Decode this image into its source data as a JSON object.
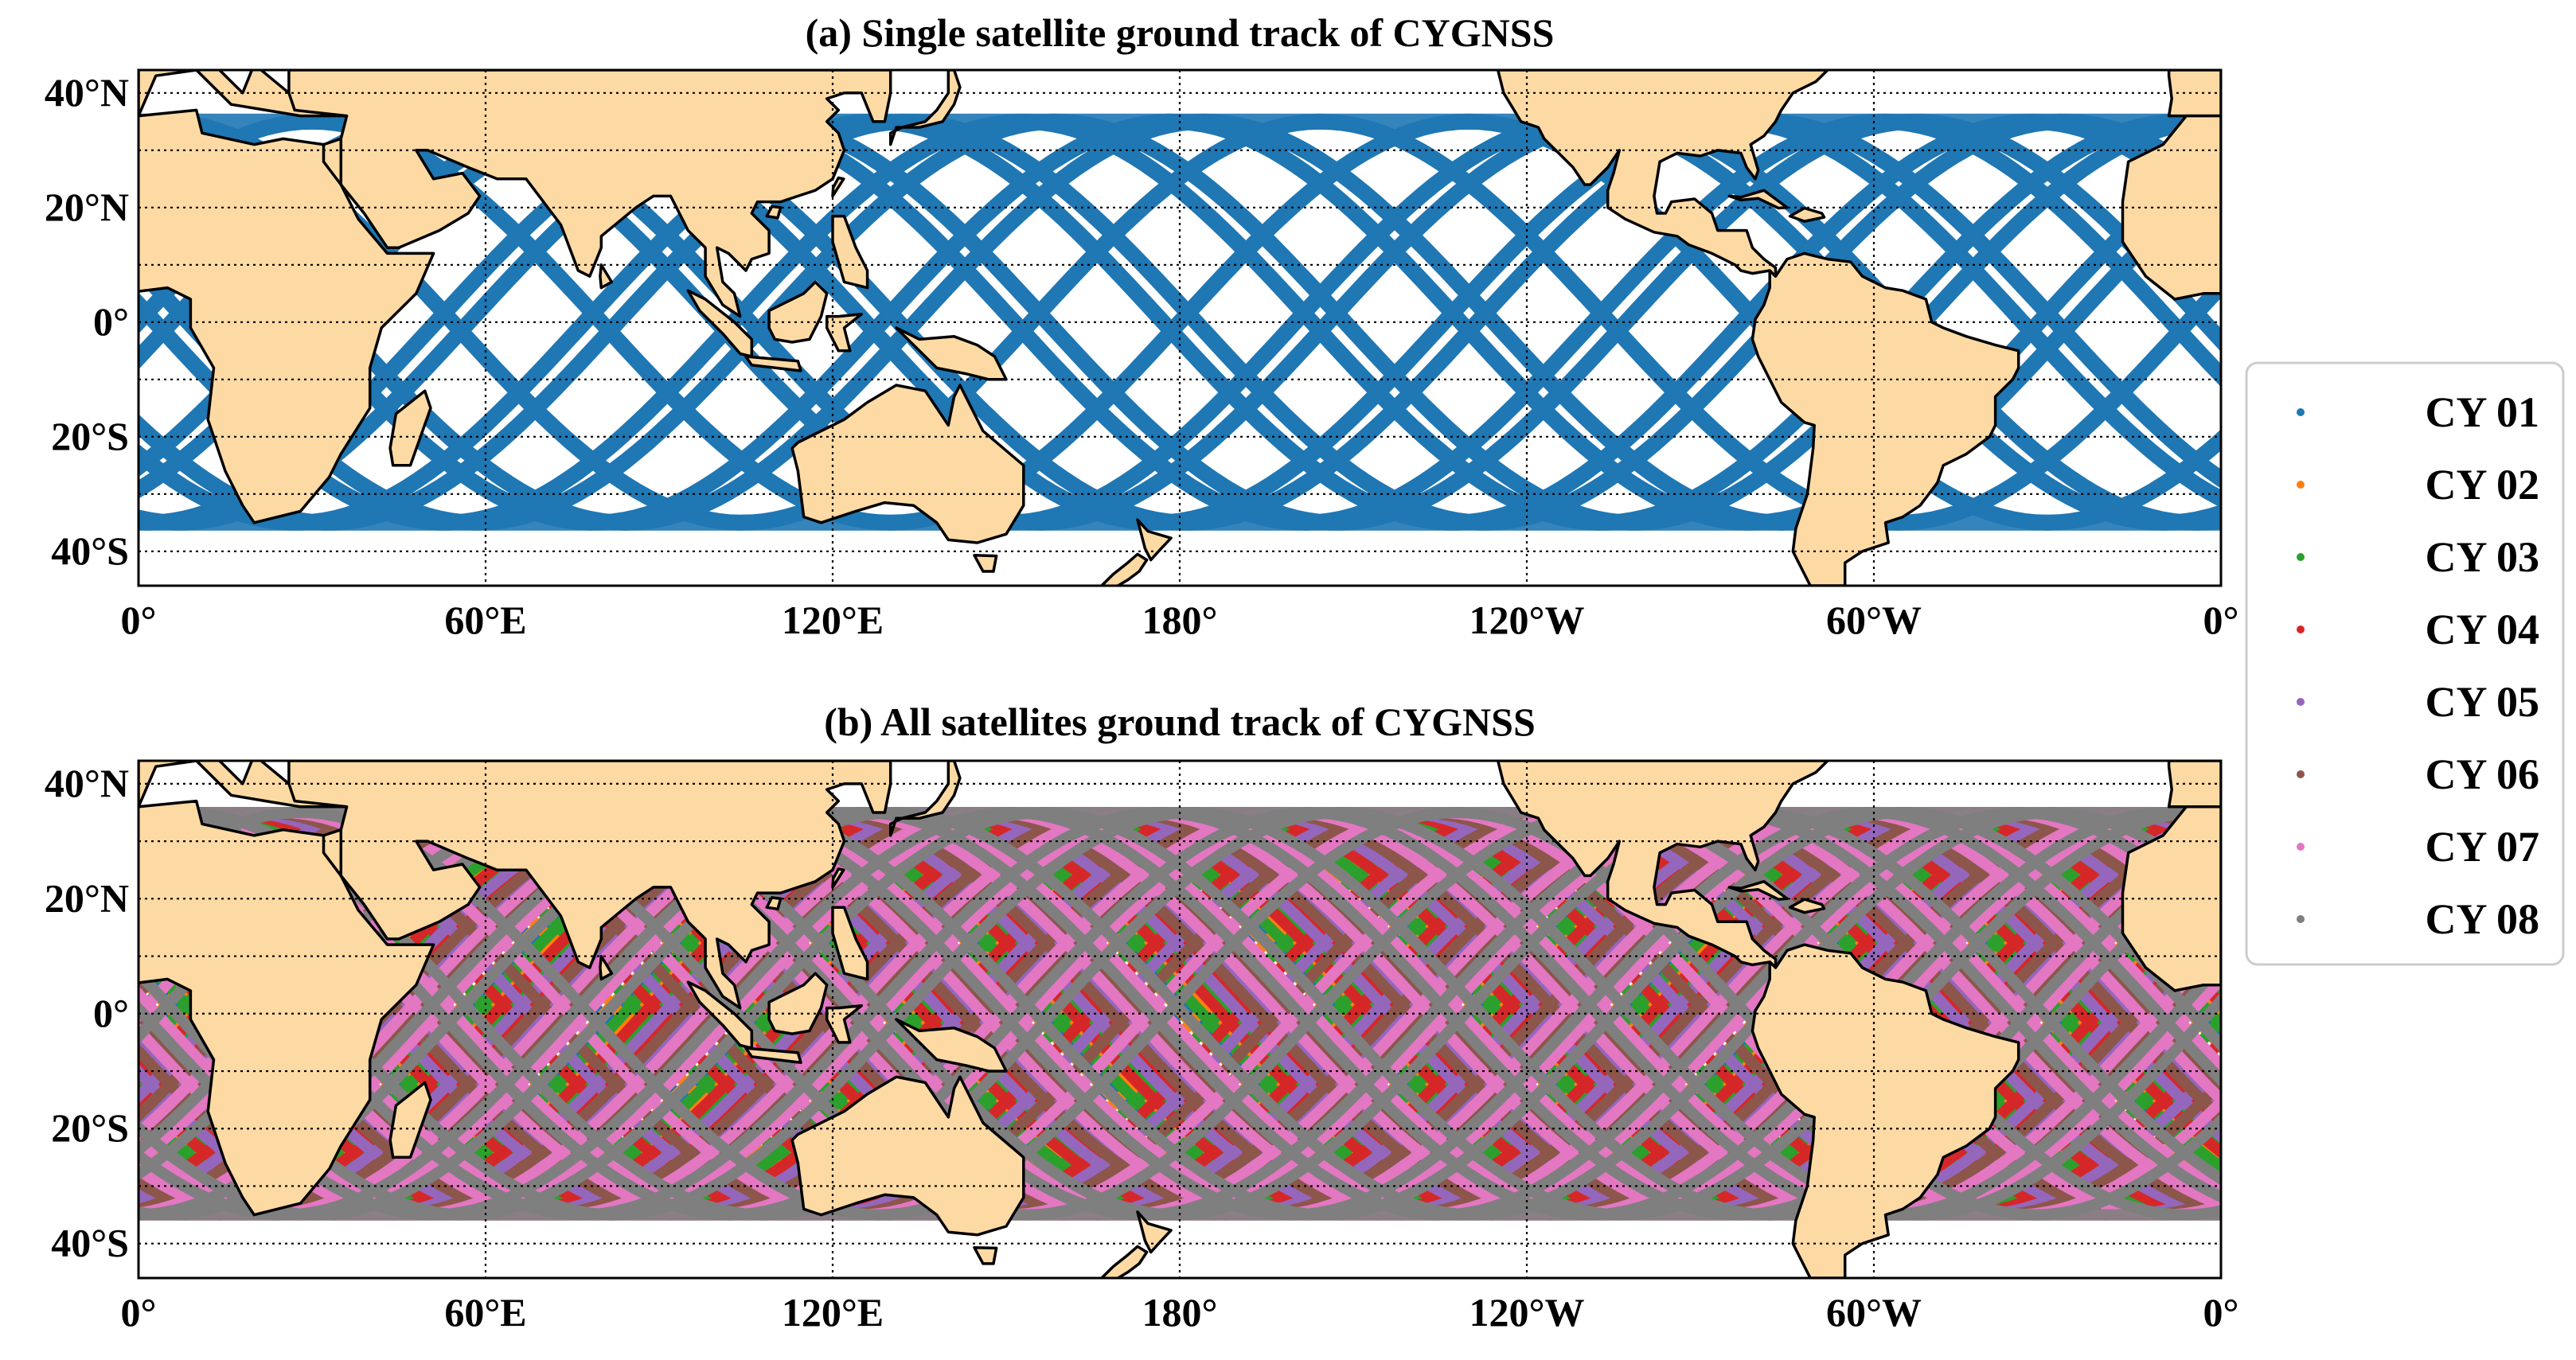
{
  "panels": [
    {
      "id": "a",
      "title": "(a) Single satellite ground track of CYGNSS",
      "satellites": [
        "CY 01"
      ]
    },
    {
      "id": "b",
      "title": "(b) All satellites ground track of CYGNSS",
      "satellites": [
        "CY 01",
        "CY 02",
        "CY 03",
        "CY 04",
        "CY 05",
        "CY 06",
        "CY 07",
        "CY 08"
      ]
    }
  ],
  "x_ticks": [
    {
      "lon": 0,
      "label": "0°"
    },
    {
      "lon": 60,
      "label": "60°E"
    },
    {
      "lon": 120,
      "label": "120°E"
    },
    {
      "lon": 180,
      "label": "180°"
    },
    {
      "lon": 240,
      "label": "120°W"
    },
    {
      "lon": 300,
      "label": "60°W"
    },
    {
      "lon": 360,
      "label": "0°"
    }
  ],
  "y_ticks": [
    {
      "lat": 40,
      "label": "40°N"
    },
    {
      "lat": 20,
      "label": "20°N"
    },
    {
      "lat": 0,
      "label": "0°"
    },
    {
      "lat": -20,
      "label": "20°S"
    },
    {
      "lat": -40,
      "label": "40°S"
    }
  ],
  "lon_range": [
    0,
    360
  ],
  "lat_range": [
    -46,
    44
  ],
  "track_lat_limit": 35,
  "grid": "dotted",
  "legend": {
    "placement": "right-center",
    "entries": [
      {
        "label": "CY 01",
        "color": "#1f77b4"
      },
      {
        "label": "CY 02",
        "color": "#ff7f0e"
      },
      {
        "label": "CY 03",
        "color": "#2ca02c"
      },
      {
        "label": "CY 04",
        "color": "#d62728"
      },
      {
        "label": "CY 05",
        "color": "#9467bd"
      },
      {
        "label": "CY 06",
        "color": "#8c564b"
      },
      {
        "label": "CY 07",
        "color": "#e377c2"
      },
      {
        "label": "CY 08",
        "color": "#7f7f7f"
      }
    ]
  },
  "colors": {
    "land": "#fddaa4",
    "coast": "#000000",
    "ocean": "#ffffff"
  }
}
